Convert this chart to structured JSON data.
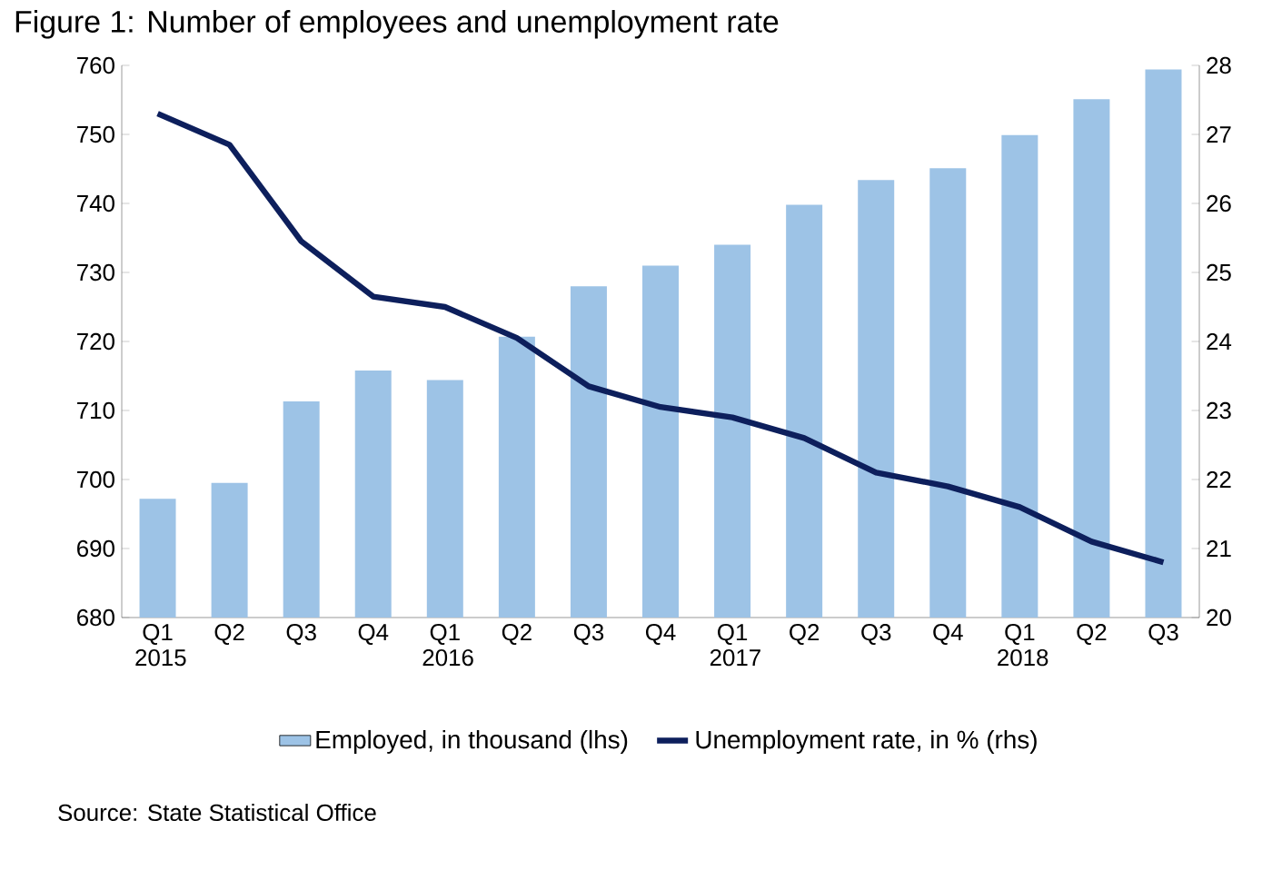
{
  "chart_data": {
    "type": "bar",
    "title": "Figure 1: Number of employees and unemployment rate",
    "categories": [
      "Q1 2015",
      "Q2",
      "Q3",
      "Q4",
      "Q1 2016",
      "Q2",
      "Q3",
      "Q4",
      "Q1 2017",
      "Q2",
      "Q3",
      "Q4",
      "Q1 2018",
      "Q2",
      "Q3"
    ],
    "series": [
      {
        "name": "Employed, in thousand (lhs)",
        "color": "#9dc3e6",
        "values": [
          697.2,
          699.5,
          711.3,
          715.8,
          714.4,
          720.7,
          728,
          731,
          734,
          739.8,
          743.4,
          745.1,
          749.9,
          755.1,
          759.4
        ]
      },
      {
        "name": "Unemployment rate, in % (rhs)",
        "type": "line",
        "axis": "y2",
        "color": "#0d1f5c",
        "values": [
          27.3,
          26.85,
          25.45,
          24.65,
          24.5,
          24.05,
          23.35,
          23.05,
          22.9,
          22.6,
          22.1,
          21.9,
          21.6,
          21.1,
          20.8
        ]
      }
    ],
    "ylim": [
      680,
      760
    ],
    "yticks": [
      680,
      690,
      700,
      710,
      720,
      730,
      740,
      750,
      760
    ],
    "y2lim": [
      20,
      28
    ],
    "y2ticks": [
      20,
      21,
      22,
      23,
      24,
      25,
      26,
      27,
      28
    ],
    "legend": "bottom",
    "grid": false,
    "annotations": [
      "Source: State Statistical Office"
    ]
  }
}
